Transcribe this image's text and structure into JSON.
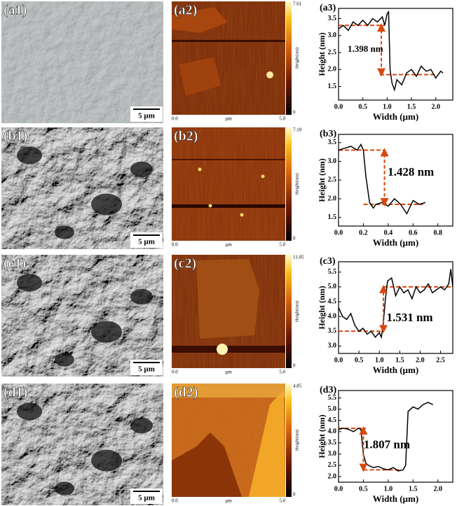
{
  "sem_panels": [
    {
      "label": "(a1)",
      "scale_bar": "5 µm"
    },
    {
      "label": "(b1)",
      "scale_bar": "5 µm"
    },
    {
      "label": "(c1)",
      "scale_bar": "5 µm"
    },
    {
      "label": "(d1)",
      "scale_bar": "5 µm"
    }
  ],
  "afm_panels": [
    {
      "label": "(a2)",
      "colorbar_max": "7.61",
      "colorbar_min": "0",
      "colorbar_title": "Height(nm)",
      "x_start": "0.0",
      "x_unit": "µm",
      "x_end": "5.0"
    },
    {
      "label": "(b2)",
      "colorbar_max": "7.10",
      "colorbar_min": "0",
      "colorbar_title": "Height(nm)",
      "x_start": "0.0",
      "x_unit": "µm",
      "x_end": "5.0"
    },
    {
      "label": "(c2)",
      "colorbar_max": "11.05",
      "colorbar_min": "0",
      "colorbar_title": "Height(nm)",
      "x_start": "0.0",
      "x_unit": "µm",
      "x_end": "5.0"
    },
    {
      "label": "(d2)",
      "colorbar_max": "4.85",
      "colorbar_min": "0",
      "colorbar_title": "Height(nm)",
      "x_start": "0.0",
      "x_unit": "µm",
      "x_end": "5.0"
    }
  ],
  "chart_data": [
    {
      "type": "line",
      "label": "(a3)",
      "x_label": "Width (µm)",
      "y_label": "Height (nm)",
      "color": "#000000",
      "guide_color": "#d9480f",
      "x": [
        0,
        0.1,
        0.2,
        0.3,
        0.4,
        0.5,
        0.6,
        0.7,
        0.8,
        0.9,
        0.95,
        1.0,
        1.03,
        1.06,
        1.1,
        1.15,
        1.2,
        1.3,
        1.4,
        1.5,
        1.6,
        1.7,
        1.8,
        1.9,
        2.0,
        2.1,
        2.15
      ],
      "values": [
        3.2,
        3.3,
        3.15,
        3.4,
        3.3,
        3.45,
        3.3,
        3.5,
        3.4,
        3.55,
        3.3,
        3.65,
        3.7,
        2.0,
        1.6,
        1.4,
        1.7,
        1.55,
        1.9,
        2.0,
        1.8,
        2.1,
        1.95,
        2.0,
        1.75,
        1.95,
        1.9
      ],
      "xlim": [
        0,
        2.35
      ],
      "xticks": [
        {
          "value": 0,
          "label": "0.0"
        },
        0.5,
        {
          "value": 1,
          "label": "1.0"
        },
        1.5,
        {
          "value": 2,
          "label": "2.0"
        }
      ],
      "ylim": [
        1.1,
        3.8
      ],
      "yticks": [
        1.5,
        {
          "value": 2,
          "label": "2.0"
        },
        2.5,
        {
          "value": 3,
          "label": "3.0"
        },
        3.5
      ],
      "guides": [
        {
          "y": 3.3,
          "x": [
            0,
            0.95
          ]
        },
        {
          "y": 1.85,
          "x": [
            0.85,
            2.0
          ]
        }
      ],
      "step_marker": {
        "x": 0.88,
        "y": [
          1.85,
          3.3
        ]
      },
      "annotation": "1.398 nm"
    },
    {
      "type": "line",
      "label": "(b3)",
      "x_label": "Width (µm)",
      "y_label": "Height (nm)",
      "color": "#000000",
      "guide_color": "#d9480f",
      "x": [
        0,
        0.05,
        0.1,
        0.15,
        0.18,
        0.2,
        0.22,
        0.25,
        0.28,
        0.3,
        0.35,
        0.4,
        0.45,
        0.5,
        0.55,
        0.6,
        0.65,
        0.7
      ],
      "values": [
        3.3,
        3.35,
        3.4,
        3.3,
        3.45,
        3.3,
        2.6,
        1.9,
        1.75,
        1.85,
        1.9,
        1.8,
        2.0,
        1.85,
        1.6,
        1.95,
        1.85,
        1.9
      ],
      "xlim": [
        0,
        0.92
      ],
      "xticks": [
        {
          "value": 0,
          "label": "0.0"
        },
        0.2,
        0.4,
        0.6,
        0.8
      ],
      "ylim": [
        1.27,
        3.72
      ],
      "yticks": [
        1.5,
        {
          "value": 2,
          "label": "2.0"
        },
        2.5,
        {
          "value": 3,
          "label": "3.0"
        },
        3.5
      ],
      "guides": [
        {
          "y": 3.3,
          "x": [
            0,
            0.37
          ]
        },
        {
          "y": 1.85,
          "x": [
            0.2,
            0.68
          ]
        }
      ],
      "step_marker": {
        "x": 0.37,
        "y": [
          1.85,
          3.3
        ]
      },
      "annotation": "1.428 nm"
    },
    {
      "type": "line",
      "label": "(c3)",
      "x_label": "Width (µm)",
      "y_label": "Height (nm)",
      "color": "#000000",
      "guide_color": "#d9480f",
      "x": [
        0,
        0.1,
        0.2,
        0.3,
        0.4,
        0.5,
        0.6,
        0.7,
        0.8,
        0.9,
        1.0,
        1.05,
        1.1,
        1.15,
        1.2,
        1.3,
        1.4,
        1.5,
        1.6,
        1.7,
        1.8,
        1.9,
        2.0,
        2.1,
        2.2,
        2.3,
        2.4,
        2.5,
        2.6,
        2.7,
        2.75,
        2.8
      ],
      "values": [
        4.3,
        4.0,
        3.9,
        4.1,
        3.7,
        3.5,
        3.6,
        3.4,
        3.5,
        3.3,
        3.45,
        3.3,
        3.8,
        4.6,
        5.2,
        5.3,
        4.7,
        5.0,
        4.8,
        4.9,
        4.6,
        5.0,
        4.8,
        4.9,
        5.1,
        4.8,
        4.9,
        5.0,
        4.9,
        5.1,
        5.6,
        5.0
      ],
      "xlim": [
        0,
        2.8
      ],
      "xticks": [
        {
          "value": 0,
          "label": "0.0"
        },
        0.5,
        {
          "value": 1,
          "label": "1.0"
        },
        1.5,
        {
          "value": 2,
          "label": "2.0"
        },
        2.5
      ],
      "ylim": [
        2.75,
        5.85
      ],
      "yticks": [
        {
          "value": 3,
          "label": "3.0"
        },
        3.5,
        {
          "value": 4,
          "label": "4.0"
        },
        4.5,
        {
          "value": 5,
          "label": "5.0"
        },
        5.5
      ],
      "guides": [
        {
          "y": 3.5,
          "x": [
            0,
            1.1
          ]
        },
        {
          "y": 5.0,
          "x": [
            1.1,
            2.75
          ]
        }
      ],
      "step_marker": {
        "x": 1.1,
        "y": [
          3.5,
          5.0
        ]
      },
      "annotation": "1.531 nm"
    },
    {
      "type": "line",
      "label": "(d3)",
      "x_label": "Width (µm)",
      "y_label": "Height (nm)",
      "color": "#000000",
      "guide_color": "#d9480f",
      "x": [
        0,
        0.1,
        0.2,
        0.3,
        0.4,
        0.45,
        0.5,
        0.55,
        0.6,
        0.7,
        0.8,
        0.9,
        1.0,
        1.1,
        1.2,
        1.3,
        1.35,
        1.4,
        1.5,
        1.6,
        1.7,
        1.8,
        1.9
      ],
      "values": [
        4.1,
        4.15,
        4.1,
        4.0,
        4.15,
        4.1,
        3.0,
        2.6,
        2.5,
        2.4,
        2.45,
        2.35,
        2.3,
        2.4,
        2.25,
        2.3,
        2.5,
        4.9,
        5.1,
        5.0,
        5.2,
        5.3,
        5.2
      ],
      "xlim": [
        0,
        2.3
      ],
      "xticks": [
        {
          "value": 0,
          "label": "0.0"
        },
        0.5,
        {
          "value": 1,
          "label": "1.0"
        },
        1.5,
        {
          "value": 2,
          "label": "2.0"
        }
      ],
      "ylim": [
        1.75,
        5.83
      ],
      "yticks": [
        {
          "value": 2,
          "label": "2.0"
        },
        2.5,
        {
          "value": 3,
          "label": "3.0"
        },
        3.5,
        {
          "value": 4,
          "label": "4.0"
        },
        4.5,
        {
          "value": 5,
          "label": "5.0"
        },
        5.5
      ],
      "guides": [
        {
          "y": 4.15,
          "x": [
            0,
            0.55
          ]
        },
        {
          "y": 2.3,
          "x": [
            0.5,
            1.25
          ]
        }
      ],
      "step_marker": {
        "x": 0.5,
        "y": [
          2.3,
          4.15
        ]
      },
      "annotation": "1.807 nm"
    }
  ]
}
